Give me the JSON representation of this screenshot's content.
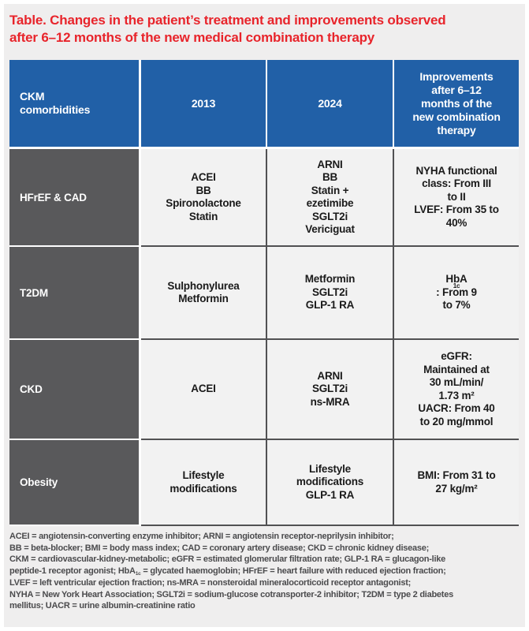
{
  "title": "Table. Changes in the patient’s treatment and improvements observed\nafter 6–12 months of the new medical combination therapy",
  "colors": {
    "title_red": "#e8242b",
    "header_blue": "#2160a7",
    "label_gray": "#59595b",
    "grid_line": "#515153",
    "cell_bg": "#f2f2f2",
    "page_bg": "#efeeee"
  },
  "table": {
    "headers": {
      "comorbidities": "CKM\ncomorbidities",
      "y2013": "2013",
      "y2024": "2024",
      "improvements": "Improvements\nafter 6–12\nmonths of the\nnew combination\ntherapy"
    },
    "rows": [
      {
        "label": "HFrEF & CAD",
        "t2013": "ACEI\nBB\nSpironolactone\nStatin",
        "t2024": "ARNI\nBB\nStatin +\nezetimibe\nSGLT2i\nVericiguat",
        "improvements": "NYHA functional\nclass: From III\nto II\nLVEF: From 35 to\n40%"
      },
      {
        "label": "T2DM",
        "t2013": "Sulphonylurea\nMetformin",
        "t2024": "Metformin\nSGLT2i\nGLP-1 RA",
        "improvements": "HbA{sub}1c{/sub}: From 9\nto 7%"
      },
      {
        "label": "CKD",
        "t2013": "ACEI",
        "t2024": "ARNI\nSGLT2i\nns-MRA",
        "improvements": "eGFR:\nMaintained at\n30 mL/min/\n1.73 m²\nUACR: From 40\nto 20 mg/mmol"
      },
      {
        "label": "Obesity",
        "t2013": "Lifestyle\nmodifications",
        "t2024": "Lifestyle\nmodifications\nGLP-1 RA",
        "improvements": "BMI: From 31 to\n27 kg/m²"
      }
    ]
  },
  "footnote": "ACEI = angiotensin-converting enzyme inhibitor; ARNI = angiotensin receptor-neprilysin inhibitor;\nBB = beta-blocker; BMI = body mass index; CAD = coronary artery disease; CKD = chronic kidney disease;\nCKM = cardiovascular-kidney-metabolic; eGFR = estimated glomerular filtration rate; GLP-1 RA = glucagon-like\npeptide-1 receptor agonist; HbA{sub}1c{/sub} = glycated haemoglobin; HFrEF = heart failure with reduced ejection fraction;\nLVEF = left ventricular ejection fraction; ns-MRA = nonsteroidal mineralocorticoid receptor antagonist;\nNYHA = New York Heart Association; SGLT2i = sodium-glucose cotransporter-2 inhibitor; T2DM = type 2 diabetes\nmellitus; UACR = urine albumin-creatinine ratio"
}
